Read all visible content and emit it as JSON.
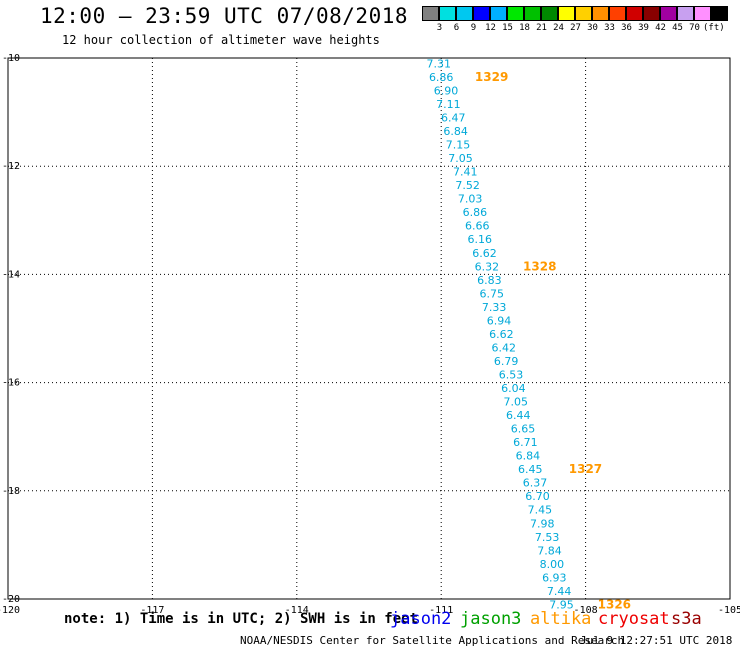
{
  "header": {
    "title": "12:00 – 23:59 UTC 07/08/2018",
    "subtitle": "12 hour collection of altimeter wave heights"
  },
  "scale": {
    "colors": [
      "#808080",
      "#00e0e0",
      "#00c8f0",
      "#0000ff",
      "#00b0ff",
      "#00e800",
      "#00c000",
      "#008800",
      "#ffff00",
      "#ffd000",
      "#ff9000",
      "#ff4000",
      "#d00000",
      "#880000",
      "#a000a0",
      "#c8a0f0",
      "#ff90ff",
      "#000000"
    ],
    "labels": [
      "3",
      "6",
      "9",
      "12",
      "15",
      "18",
      "21",
      "24",
      "27",
      "30",
      "33",
      "36",
      "39",
      "42",
      "45",
      "70",
      "(ft)"
    ]
  },
  "map": {
    "x_ticks": [
      "-120",
      "-117",
      "-114",
      "-111",
      "-108",
      "-105"
    ],
    "y_ticks": [
      "-10",
      "-12",
      "-14",
      "-16",
      "-18",
      "-20"
    ],
    "lon_range": [
      -120,
      -105
    ],
    "lat_range": [
      -10,
      -20
    ],
    "point_color": "#00a8d8",
    "time_color": "#ff9900",
    "points": [
      {
        "lon": -111.05,
        "lat": -10.1,
        "value": "7.31"
      },
      {
        "lon": -111.0,
        "lat": -10.35,
        "value": "6.86"
      },
      {
        "lon": -110.9,
        "lat": -10.6,
        "value": "6.90"
      },
      {
        "lon": -110.85,
        "lat": -10.85,
        "value": "7.11"
      },
      {
        "lon": -110.75,
        "lat": -11.1,
        "value": "6.47"
      },
      {
        "lon": -110.7,
        "lat": -11.35,
        "value": "6.84"
      },
      {
        "lon": -110.65,
        "lat": -11.6,
        "value": "7.15"
      },
      {
        "lon": -110.6,
        "lat": -11.85,
        "value": "7.05"
      },
      {
        "lon": -110.5,
        "lat": -12.1,
        "value": "7.41"
      },
      {
        "lon": -110.45,
        "lat": -12.35,
        "value": "7.52"
      },
      {
        "lon": -110.4,
        "lat": -12.6,
        "value": "7.03"
      },
      {
        "lon": -110.3,
        "lat": -12.85,
        "value": "6.86"
      },
      {
        "lon": -110.25,
        "lat": -13.1,
        "value": "6.66"
      },
      {
        "lon": -110.2,
        "lat": -13.35,
        "value": "6.16"
      },
      {
        "lon": -110.1,
        "lat": -13.6,
        "value": "6.62"
      },
      {
        "lon": -110.05,
        "lat": -13.85,
        "value": "6.32"
      },
      {
        "lon": -110.0,
        "lat": -14.1,
        "value": "6.83"
      },
      {
        "lon": -109.95,
        "lat": -14.35,
        "value": "6.75"
      },
      {
        "lon": -109.9,
        "lat": -14.6,
        "value": "7.33"
      },
      {
        "lon": -109.8,
        "lat": -14.85,
        "value": "6.94"
      },
      {
        "lon": -109.75,
        "lat": -15.1,
        "value": "6.62"
      },
      {
        "lon": -109.7,
        "lat": -15.35,
        "value": "6.42"
      },
      {
        "lon": -109.65,
        "lat": -15.6,
        "value": "6.79"
      },
      {
        "lon": -109.55,
        "lat": -15.85,
        "value": "6.53"
      },
      {
        "lon": -109.5,
        "lat": -16.1,
        "value": "6.04"
      },
      {
        "lon": -109.45,
        "lat": -16.35,
        "value": "7.05"
      },
      {
        "lon": -109.4,
        "lat": -16.6,
        "value": "6.44"
      },
      {
        "lon": -109.3,
        "lat": -16.85,
        "value": "6.65"
      },
      {
        "lon": -109.25,
        "lat": -17.1,
        "value": "6.71"
      },
      {
        "lon": -109.2,
        "lat": -17.35,
        "value": "6.84"
      },
      {
        "lon": -109.15,
        "lat": -17.6,
        "value": "6.45"
      },
      {
        "lon": -109.05,
        "lat": -17.85,
        "value": "6.37"
      },
      {
        "lon": -109.0,
        "lat": -18.1,
        "value": "6.70"
      },
      {
        "lon": -108.95,
        "lat": -18.35,
        "value": "7.45"
      },
      {
        "lon": -108.9,
        "lat": -18.6,
        "value": "7.98"
      },
      {
        "lon": -108.8,
        "lat": -18.85,
        "value": "7.53"
      },
      {
        "lon": -108.75,
        "lat": -19.1,
        "value": "7.84"
      },
      {
        "lon": -108.7,
        "lat": -19.35,
        "value": "8.00"
      },
      {
        "lon": -108.65,
        "lat": -19.6,
        "value": "6.93"
      },
      {
        "lon": -108.55,
        "lat": -19.85,
        "value": "7.44"
      },
      {
        "lon": -108.5,
        "lat": -20.1,
        "value": "7.95"
      }
    ],
    "times": [
      {
        "lon": -110.3,
        "lat": -10.35,
        "label": "1329"
      },
      {
        "lon": -109.3,
        "lat": -13.85,
        "label": "1328"
      },
      {
        "lon": -108.35,
        "lat": -17.6,
        "label": "1327"
      },
      {
        "lon": -107.75,
        "lat": -20.1,
        "label": "1326"
      }
    ]
  },
  "footer": {
    "note": "note: 1) Time is in UTC; 2) SWH is in feet",
    "satellites": [
      {
        "name": "jason2",
        "color": "#0000ee"
      },
      {
        "name": "jason3",
        "color": "#00a000"
      },
      {
        "name": "altika",
        "color": "#ff9900"
      },
      {
        "name": "cryosat",
        "color": "#ee0000"
      },
      {
        "name": "s3a",
        "color": "#990000"
      }
    ],
    "credit": "NOAA/NESDIS Center for Satellite Applications and Research",
    "timestamp": "Jul  9 12:27:51 UTC 2018"
  }
}
